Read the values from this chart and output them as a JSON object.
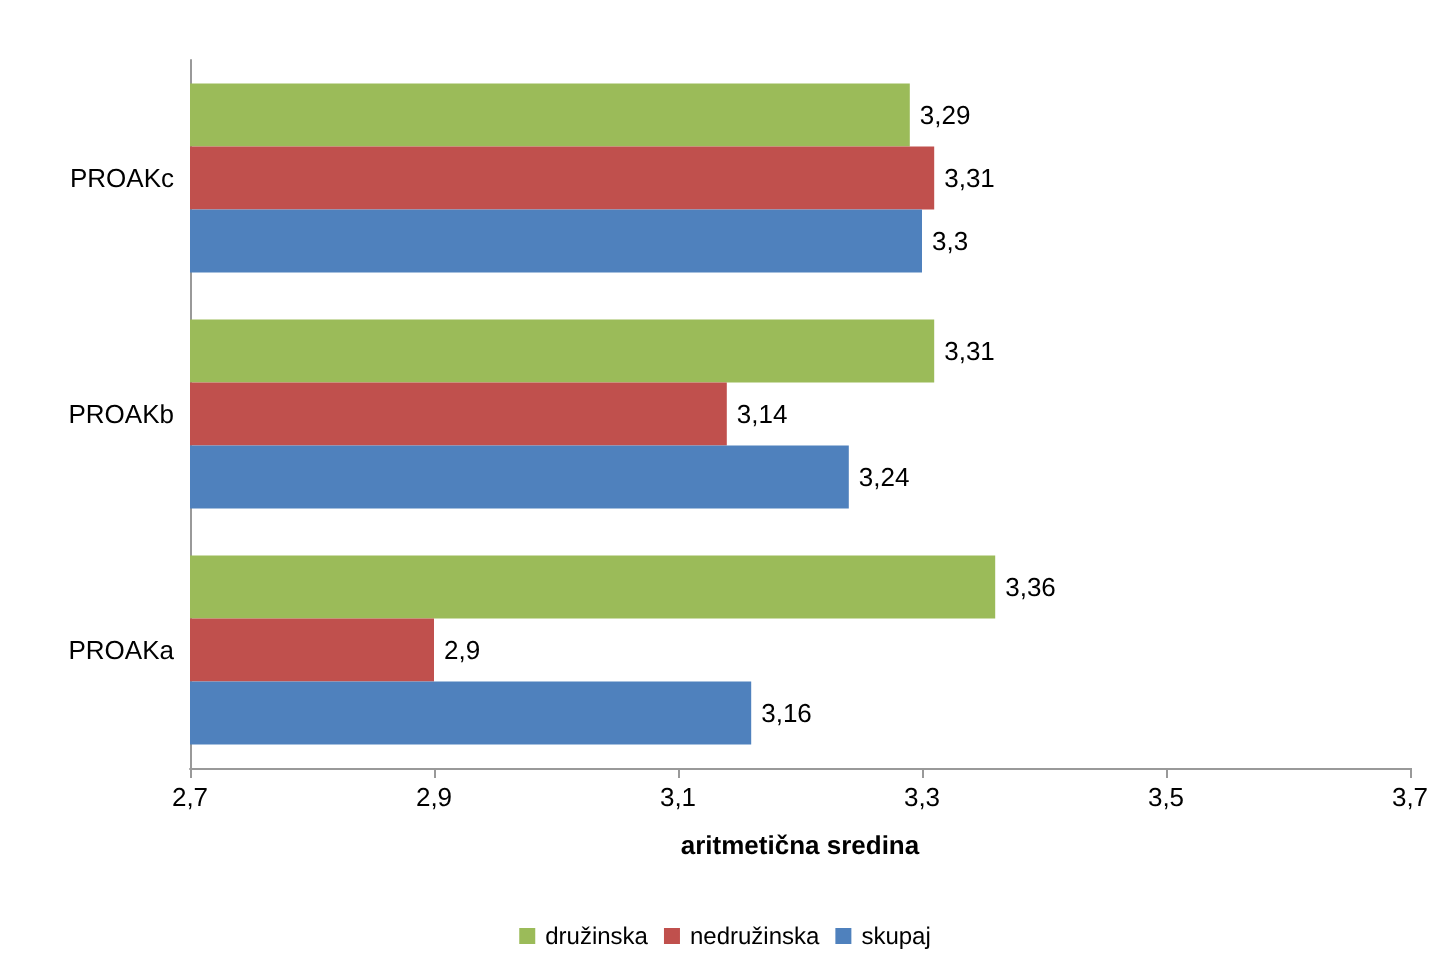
{
  "chart_data": {
    "type": "bar",
    "orientation": "horizontal",
    "xlabel": "aritmetična sredina",
    "categories": [
      "PROAKc",
      "PROAKb",
      "PROAKa"
    ],
    "series": [
      {
        "name": "družinska",
        "color": "#9bbb59",
        "values": [
          3.29,
          3.31,
          3.36
        ],
        "value_labels": [
          "3,29",
          "3,31",
          "3,36"
        ]
      },
      {
        "name": "nedružinska",
        "color": "#c0504d",
        "values": [
          3.31,
          3.14,
          2.9
        ],
        "value_labels": [
          "3,31",
          "3,14",
          "2,9"
        ]
      },
      {
        "name": "skupaj",
        "color": "#4f81bd",
        "values": [
          3.3,
          3.24,
          3.16
        ],
        "value_labels": [
          "3,3",
          "3,24",
          "3,16"
        ]
      }
    ],
    "xlim": [
      2.7,
      3.7
    ],
    "xticks": [
      {
        "value": 2.7,
        "label": "2,7"
      },
      {
        "value": 2.9,
        "label": "2,9"
      },
      {
        "value": 3.1,
        "label": "3,1"
      },
      {
        "value": 3.3,
        "label": "3,3"
      },
      {
        "value": 3.5,
        "label": "3,5"
      },
      {
        "value": 3.7,
        "label": "3,7"
      }
    ],
    "grid": false,
    "legend": "bottom"
  }
}
